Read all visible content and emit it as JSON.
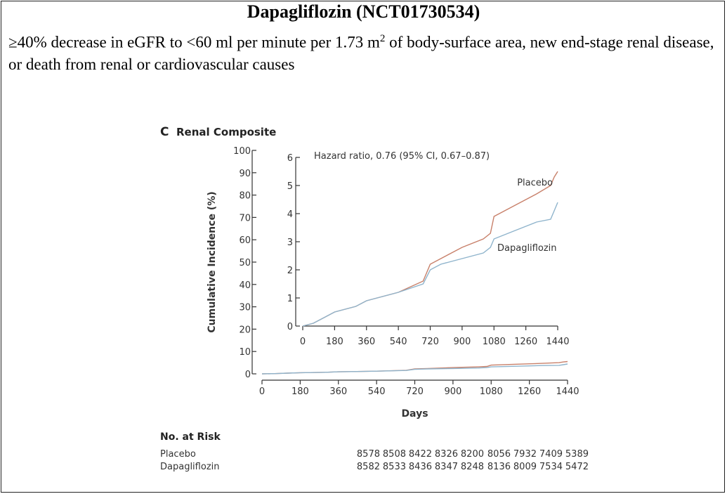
{
  "page": {
    "title": "Dapagliflozin (NCT01730534)",
    "subtitle_pre": "≥40% decrease in eGFR to <60 ml per minute per 1.73 m",
    "subtitle_sup": "2",
    "subtitle_post": " of body-surface area, new end-stage renal disease, or death from renal or cardiovascular causes"
  },
  "chart_data": {
    "type": "line",
    "panel_letter": "C",
    "panel_title": "Renal Composite",
    "xlabel": "Days",
    "ylabel": "Cumulative Incidence (%)",
    "xlim": [
      0,
      1440
    ],
    "ylim": [
      0,
      100
    ],
    "xticks": [
      0,
      180,
      360,
      540,
      720,
      900,
      1080,
      1260,
      1440
    ],
    "yticks": [
      0,
      10,
      20,
      30,
      40,
      50,
      60,
      70,
      80,
      90,
      100
    ],
    "colors": {
      "placebo": "#c8806a",
      "dapagliflozin": "#8fb4cc"
    },
    "series": [
      {
        "name": "Placebo",
        "x": [
          0,
          60,
          120,
          180,
          300,
          360,
          540,
          680,
          720,
          780,
          900,
          1020,
          1060,
          1080,
          1200,
          1320,
          1400,
          1420,
          1440
        ],
        "values": [
          0,
          0.1,
          0.3,
          0.5,
          0.7,
          0.9,
          1.2,
          1.6,
          2.2,
          2.4,
          2.8,
          3.1,
          3.3,
          3.9,
          4.3,
          4.7,
          5.0,
          5.3,
          5.5
        ]
      },
      {
        "name": "Dapagliflozin",
        "x": [
          0,
          60,
          120,
          180,
          300,
          360,
          540,
          680,
          720,
          780,
          900,
          1020,
          1060,
          1080,
          1200,
          1320,
          1400,
          1420,
          1440
        ],
        "values": [
          0,
          0.1,
          0.3,
          0.5,
          0.7,
          0.9,
          1.2,
          1.5,
          2.0,
          2.2,
          2.4,
          2.6,
          2.8,
          3.1,
          3.4,
          3.7,
          3.8,
          4.1,
          4.4
        ]
      }
    ],
    "inset": {
      "ylim": [
        0,
        6
      ],
      "yticks": [
        0,
        1,
        2,
        3,
        4,
        5,
        6
      ],
      "xticks": [
        0,
        180,
        360,
        540,
        720,
        900,
        1080,
        1260,
        1440
      ],
      "annotation": "Hazard ratio, 0.76 (95% CI, 0.67–0.87)",
      "labels": {
        "placebo": "Placebo",
        "dapagliflozin": "Dapagliflozin"
      }
    },
    "at_risk": {
      "title": "No. at Risk",
      "rows": [
        {
          "name": "Placebo",
          "values": [
            "8578",
            "8508",
            "8422",
            "8326",
            "8200",
            "8056",
            "7932",
            "7409",
            "5389"
          ]
        },
        {
          "name": "Dapagliflozin",
          "values": [
            "8582",
            "8533",
            "8436",
            "8347",
            "8248",
            "8136",
            "8009",
            "7534",
            "5472"
          ]
        }
      ]
    }
  }
}
